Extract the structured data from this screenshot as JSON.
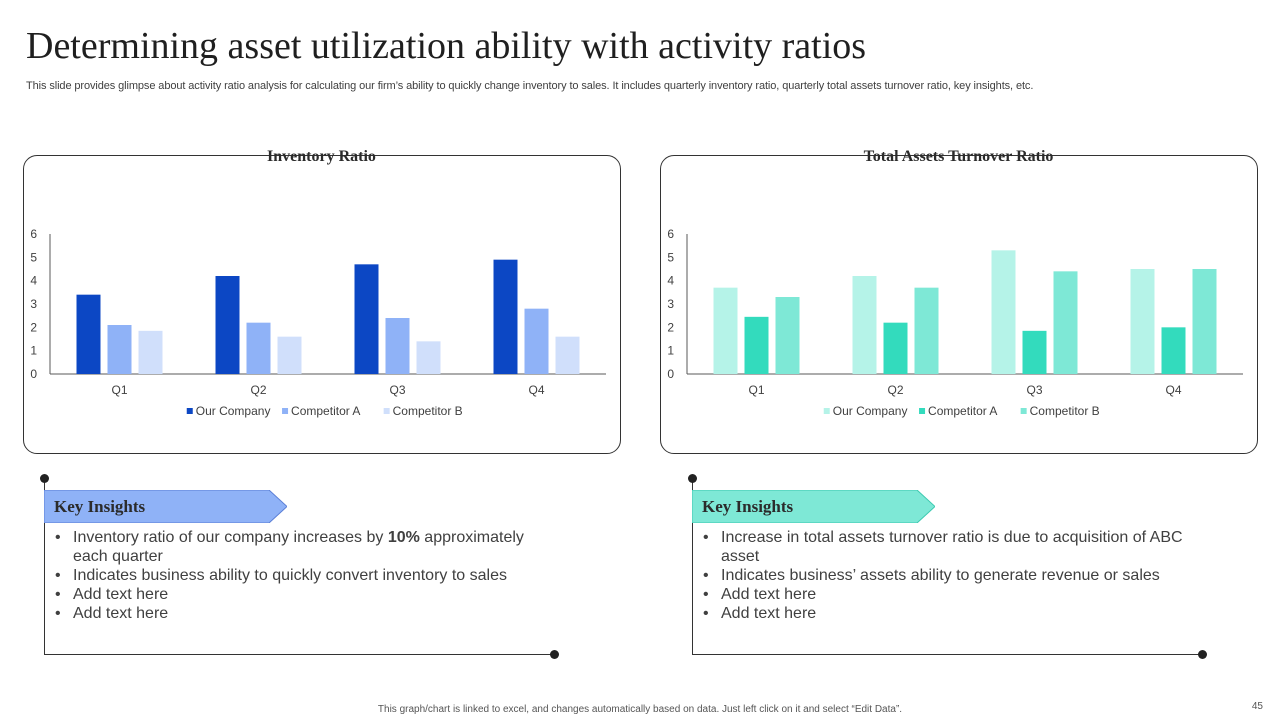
{
  "slide": {
    "title": "Determining asset utilization ability with activity ratios",
    "subtitle": "This slide provides glimpse about activity ratio analysis for calculating our firm’s ability to quickly change inventory to sales. It includes quarterly inventory ratio, quarterly total assets turnover ratio, key insights, etc.",
    "footer": "This graph/chart is linked to excel, and changes automatically based on data. Just left click on it and select “Edit Data”.",
    "page_number": "45"
  },
  "colors": {
    "left_pill": "#8fb2f7",
    "right_pill": "#7ee8d6",
    "left_banner": "#8fb2f7",
    "right_banner": "#7ee8d6"
  },
  "chart_data": [
    {
      "type": "bar",
      "title": "Inventory Ratio",
      "categories": [
        "Q1",
        "Q2",
        "Q3",
        "Q4"
      ],
      "series": [
        {
          "name": "Our Company",
          "color": "#0c47c4",
          "values": [
            3.4,
            4.2,
            4.7,
            4.9
          ]
        },
        {
          "name": "Competitor A",
          "color": "#8fb2f7",
          "values": [
            2.1,
            2.2,
            2.4,
            2.8
          ]
        },
        {
          "name": "Competitor B",
          "color": "#d0dffb",
          "values": [
            1.85,
            1.6,
            1.4,
            1.6
          ]
        }
      ],
      "ylim": [
        0,
        6
      ],
      "yticks": [
        0,
        1,
        2,
        3,
        4,
        5,
        6
      ],
      "xlabel": "",
      "ylabel": "",
      "legend": "bottom"
    },
    {
      "type": "bar",
      "title": "Total Assets Turnover Ratio",
      "categories": [
        "Q1",
        "Q2",
        "Q3",
        "Q4"
      ],
      "series": [
        {
          "name": "Our Company",
          "color": "#b5f3e8",
          "values": [
            3.7,
            4.2,
            5.3,
            4.5
          ]
        },
        {
          "name": "Competitor A",
          "color": "#33dbbd",
          "values": [
            2.45,
            2.2,
            1.85,
            2.0
          ]
        },
        {
          "name": "Competitor B",
          "color": "#7ee8d6",
          "values": [
            3.3,
            3.7,
            4.4,
            4.5
          ]
        }
      ],
      "ylim": [
        0,
        6
      ],
      "yticks": [
        0,
        1,
        2,
        3,
        4,
        5,
        6
      ],
      "xlabel": "",
      "ylabel": "",
      "legend": "bottom"
    }
  ],
  "insights": {
    "left": {
      "heading": "Key Insights",
      "b1_pre": "Inventory  ratio of our company increases by ",
      "b1_bold": "10%",
      "b1_post": " approximately each quarter",
      "b2": "Indicates business ability to quickly convert inventory  to sales",
      "b3": "Add text here",
      "b4": "Add text here"
    },
    "right": {
      "heading": "Key Insights",
      "b1": "Increase  in total assets turnover  ratio is due to acquisition of ABC asset",
      "b2": "Indicates business’ assets ability to generate revenue  or sales",
      "b3": "Add text here",
      "b4": "Add text here"
    }
  }
}
